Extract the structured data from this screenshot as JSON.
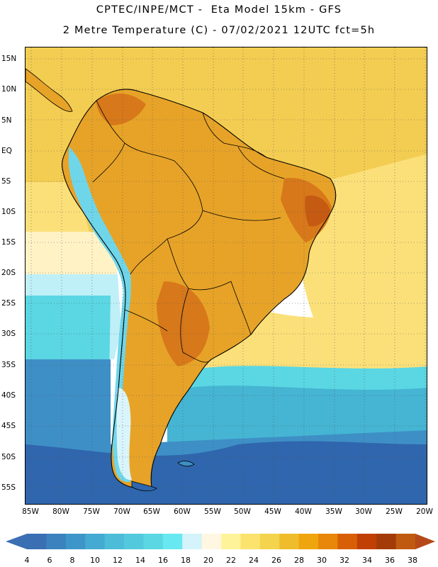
{
  "header": {
    "line1": "CPTEC/INPE/MCT -  Eta Model 15km - GFS",
    "line2": "2 Metre Temperature (C) - 07/02/2021 12UTC fct=5h"
  },
  "map": {
    "latitude_labels": [
      "15N",
      "10N",
      "5N",
      "EQ",
      "5S",
      "10S",
      "15S",
      "20S",
      "25S",
      "30S",
      "35S",
      "40S",
      "45S",
      "50S",
      "55S"
    ],
    "longitude_labels": [
      "85W",
      "80W",
      "75W",
      "70W",
      "65W",
      "60W",
      "55W",
      "50W",
      "45W",
      "40W",
      "35W",
      "30W",
      "25W",
      "20W"
    ],
    "gridline_style": "dotted"
  },
  "colorbar": {
    "ticks": [
      "4",
      "6",
      "8",
      "10",
      "12",
      "14",
      "16",
      "18",
      "20",
      "22",
      "24",
      "26",
      "28",
      "30",
      "32",
      "34",
      "36",
      "38"
    ],
    "colors": [
      "#3a6fb4",
      "#3b82bf",
      "#3e96c8",
      "#45aad1",
      "#4dbcd8",
      "#53c9dd",
      "#5ad7e3",
      "#68e8f0",
      "#d4f3fa",
      "#fff7e2",
      "#fff399",
      "#fbe36e",
      "#f4d34d",
      "#efbd2c",
      "#efa60e",
      "#e9870a",
      "#d85f06",
      "#c13f05",
      "#a33b08",
      "#c05a10"
    ],
    "low_arrow_color": "#3a6fb4",
    "high_arrow_color": "#b6491a"
  },
  "field_colors": {
    "ocean_tropical": "#f3cd52",
    "ocean_yellow": "#fbe07a",
    "ocean_pale": "#fff3c6",
    "ocean_cyan_light": "#bfeff7",
    "ocean_cyan": "#5ad7e3",
    "ocean_teal": "#45b5d3",
    "ocean_blue": "#3e8fc6",
    "ocean_deep": "#2f66ad",
    "land_warm": "#e7a328",
    "land_hot": "#d7781a",
    "land_hotter": "#c55a12",
    "andes_cold": "#6fd6ea",
    "andes_snow": "#d9f5fb"
  }
}
